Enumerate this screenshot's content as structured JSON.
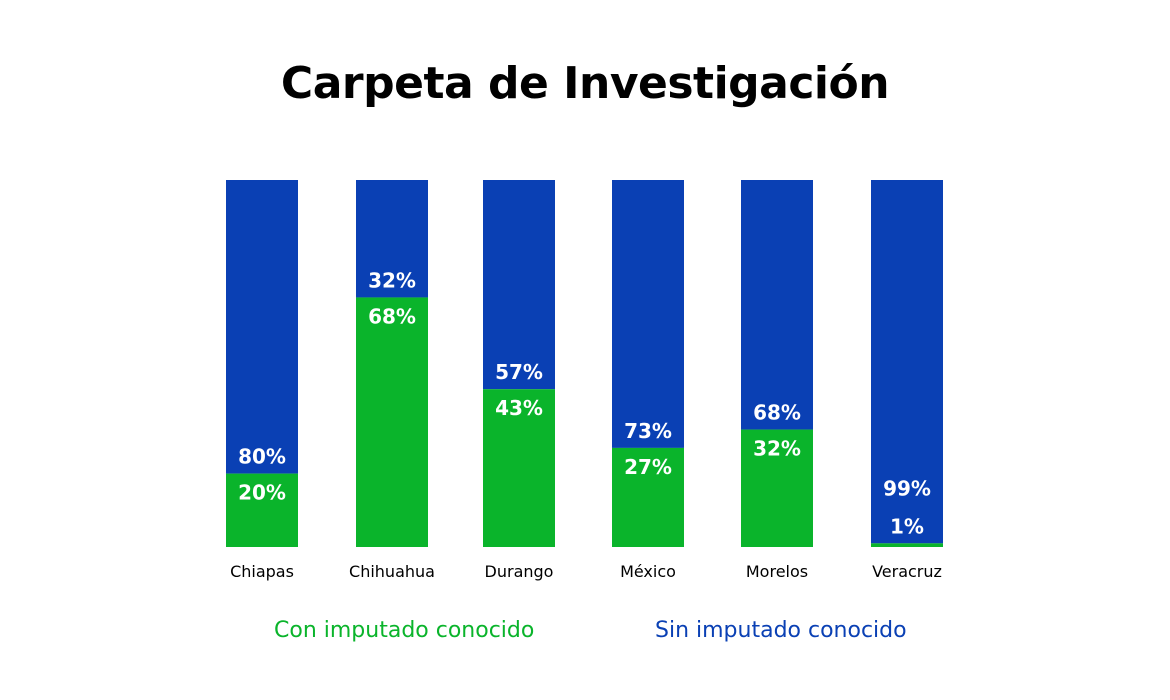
{
  "chart_data": {
    "type": "bar",
    "stacked": true,
    "title": "Carpeta de Investigación",
    "xlabel": "",
    "ylabel": "",
    "ylim": [
      0,
      100
    ],
    "grid": false,
    "legend_position": "bottom",
    "categories": [
      "Chiapas",
      "Chihuahua",
      "Durango",
      "México",
      "Morelos",
      "Veracruz"
    ],
    "series": [
      {
        "name": "Con imputado conocido",
        "color": "#0ab42b",
        "values": [
          20,
          68,
          43,
          27,
          32,
          1
        ],
        "labels": [
          "20%",
          "68%",
          "43%",
          "27%",
          "32%",
          "1%"
        ]
      },
      {
        "name": "Sin imputado conocido",
        "color": "#0a40b4",
        "values": [
          80,
          32,
          57,
          73,
          68,
          99
        ],
        "labels": [
          "80%",
          "32%",
          "57%",
          "73%",
          "68%",
          "99%"
        ]
      }
    ]
  }
}
